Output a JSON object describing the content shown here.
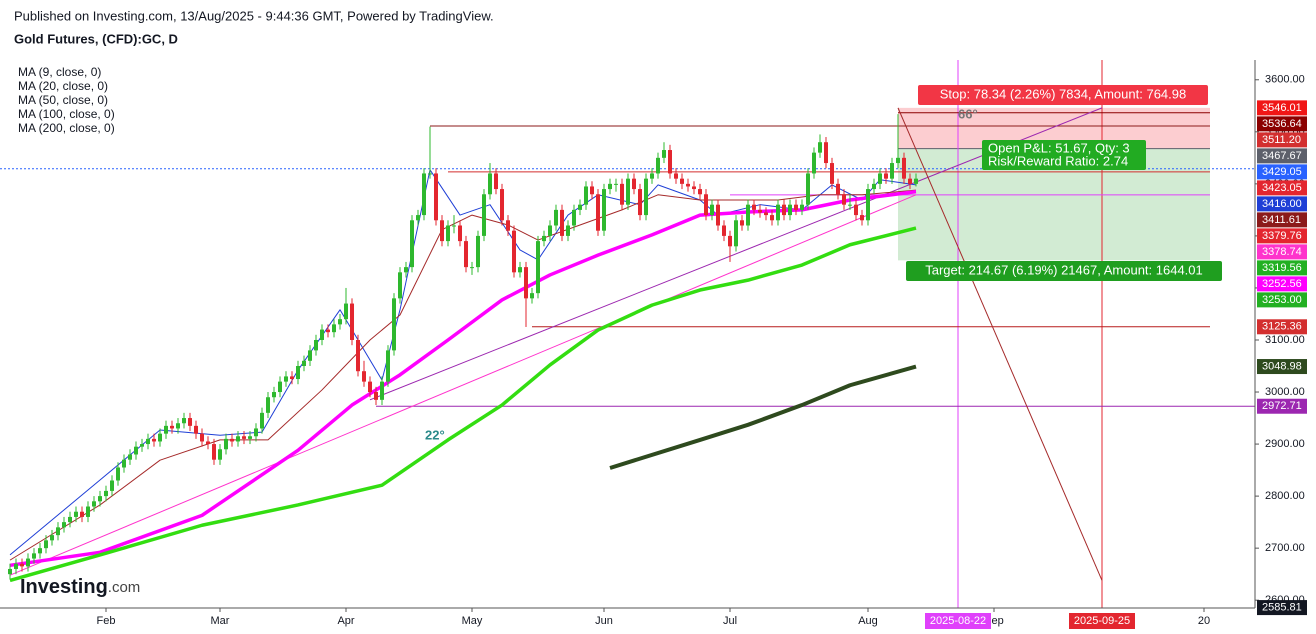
{
  "header": {
    "published": "Published on Investing.com, 13/Aug/2025 - 9:44:36 GMT, Powered by TradingView.",
    "symbol": "Gold Futures, (CFD):GC, D"
  },
  "logo": {
    "brand": "Investing",
    "suffix": ".com"
  },
  "chart_data": {
    "type": "candlestick",
    "xlim": [
      -1.667,
      207.5
    ],
    "ylim": [
      2585,
      3638
    ],
    "up_color": "#2eb82e",
    "down_color": "#e3262f",
    "xticks": [
      {
        "value": 16,
        "label": "Feb"
      },
      {
        "value": 35,
        "label": "Mar"
      },
      {
        "value": 56,
        "label": "Apr"
      },
      {
        "value": 77,
        "label": "May"
      },
      {
        "value": 99,
        "label": "Jun"
      },
      {
        "value": 120,
        "label": "Jul"
      },
      {
        "value": 143,
        "label": "Aug"
      },
      {
        "value": 164,
        "label": "Sep"
      },
      {
        "value": 199,
        "label": "20"
      }
    ],
    "yticks": [
      {
        "value": 2600,
        "label": "2600.00"
      },
      {
        "value": 2700,
        "label": "2700.00"
      },
      {
        "value": 2800,
        "label": "2800.00"
      },
      {
        "value": 2900,
        "label": "2900.00"
      },
      {
        "value": 3000,
        "label": "3000.00"
      },
      {
        "value": 3100,
        "label": "3100.00"
      },
      {
        "value": 3200,
        "label": "3200.00"
      },
      {
        "value": 3300,
        "label": "3300.00"
      },
      {
        "value": 3400,
        "label": "3400.00"
      },
      {
        "value": 3500,
        "label": "3500.00"
      },
      {
        "value": 3600,
        "label": "3600.00"
      }
    ],
    "candles": [
      [
        2650,
        2670,
        2640,
        2660
      ],
      [
        2660,
        2680,
        2650,
        2670
      ],
      [
        2670,
        2680,
        2655,
        2665
      ],
      [
        2665,
        2690,
        2655,
        2680
      ],
      [
        2680,
        2700,
        2670,
        2690
      ],
      [
        2690,
        2710,
        2680,
        2700
      ],
      [
        2700,
        2725,
        2690,
        2715
      ],
      [
        2715,
        2735,
        2705,
        2725
      ],
      [
        2725,
        2750,
        2715,
        2740
      ],
      [
        2740,
        2760,
        2730,
        2750
      ],
      [
        2750,
        2770,
        2740,
        2760
      ],
      [
        2760,
        2780,
        2750,
        2770
      ],
      [
        2770,
        2780,
        2750,
        2760
      ],
      [
        2760,
        2790,
        2750,
        2780
      ],
      [
        2780,
        2800,
        2770,
        2790
      ],
      [
        2790,
        2810,
        2780,
        2800
      ],
      [
        2800,
        2820,
        2790,
        2810
      ],
      [
        2810,
        2840,
        2800,
        2830
      ],
      [
        2830,
        2865,
        2820,
        2855
      ],
      [
        2855,
        2880,
        2845,
        2870
      ],
      [
        2870,
        2890,
        2860,
        2880
      ],
      [
        2880,
        2905,
        2870,
        2895
      ],
      [
        2895,
        2910,
        2885,
        2900
      ],
      [
        2900,
        2920,
        2890,
        2910
      ],
      [
        2910,
        2920,
        2895,
        2905
      ],
      [
        2905,
        2930,
        2895,
        2920
      ],
      [
        2920,
        2945,
        2910,
        2935
      ],
      [
        2935,
        2945,
        2920,
        2930
      ],
      [
        2930,
        2950,
        2920,
        2940
      ],
      [
        2940,
        2960,
        2930,
        2950
      ],
      [
        2950,
        2960,
        2925,
        2935
      ],
      [
        2935,
        2945,
        2910,
        2920
      ],
      [
        2920,
        2930,
        2895,
        2905
      ],
      [
        2905,
        2915,
        2890,
        2900
      ],
      [
        2900,
        2910,
        2860,
        2870
      ],
      [
        2870,
        2900,
        2860,
        2890
      ],
      [
        2890,
        2920,
        2880,
        2910
      ],
      [
        2910,
        2920,
        2895,
        2905
      ],
      [
        2905,
        2925,
        2895,
        2915
      ],
      [
        2915,
        2925,
        2900,
        2910
      ],
      [
        2910,
        2925,
        2900,
        2915
      ],
      [
        2915,
        2940,
        2905,
        2930
      ],
      [
        2930,
        2970,
        2920,
        2960
      ],
      [
        2960,
        3000,
        2950,
        2990
      ],
      [
        2990,
        3010,
        2980,
        3000
      ],
      [
        3000,
        3030,
        2990,
        3020
      ],
      [
        3020,
        3040,
        3010,
        3030
      ],
      [
        3030,
        3040,
        3015,
        3025
      ],
      [
        3025,
        3060,
        3015,
        3050
      ],
      [
        3050,
        3070,
        3040,
        3060
      ],
      [
        3060,
        3090,
        3050,
        3080
      ],
      [
        3080,
        3110,
        3070,
        3100
      ],
      [
        3100,
        3130,
        3090,
        3120
      ],
      [
        3120,
        3130,
        3105,
        3115
      ],
      [
        3115,
        3140,
        3105,
        3130
      ],
      [
        3130,
        3150,
        3120,
        3140
      ],
      [
        3140,
        3200,
        3130,
        3170
      ],
      [
        3170,
        3180,
        3090,
        3100
      ],
      [
        3100,
        3110,
        3030,
        3040
      ],
      [
        3040,
        3060,
        3010,
        3020
      ],
      [
        3020,
        3030,
        2990,
        3000
      ],
      [
        3000,
        3010,
        2975,
        2985
      ],
      [
        2985,
        3030,
        2975,
        3020
      ],
      [
        3020,
        3090,
        3010,
        3080
      ],
      [
        3080,
        3190,
        3070,
        3180
      ],
      [
        3180,
        3240,
        3170,
        3230
      ],
      [
        3230,
        3250,
        3220,
        3240
      ],
      [
        3240,
        3340,
        3230,
        3330
      ],
      [
        3330,
        3350,
        3320,
        3340
      ],
      [
        3340,
        3430,
        3330,
        3420
      ],
      [
        3420,
        3510,
        3410,
        3420
      ],
      [
        3420,
        3430,
        3320,
        3330
      ],
      [
        3330,
        3340,
        3280,
        3290
      ],
      [
        3290,
        3330,
        3280,
        3320
      ],
      [
        3320,
        3340,
        3305,
        3320
      ],
      [
        3320,
        3330,
        3280,
        3290
      ],
      [
        3290,
        3300,
        3230,
        3240
      ],
      [
        3240,
        3250,
        3225,
        3240
      ],
      [
        3240,
        3310,
        3230,
        3300
      ],
      [
        3300,
        3390,
        3290,
        3380
      ],
      [
        3380,
        3440,
        3370,
        3420
      ],
      [
        3420,
        3430,
        3380,
        3390
      ],
      [
        3390,
        3400,
        3320,
        3330
      ],
      [
        3330,
        3340,
        3300,
        3310
      ],
      [
        3310,
        3320,
        3220,
        3230
      ],
      [
        3230,
        3250,
        3220,
        3240
      ],
      [
        3240,
        3250,
        3125,
        3180
      ],
      [
        3180,
        3200,
        3170,
        3190
      ],
      [
        3190,
        3300,
        3180,
        3290
      ],
      [
        3290,
        3310,
        3280,
        3300
      ],
      [
        3300,
        3330,
        3290,
        3320
      ],
      [
        3320,
        3360,
        3310,
        3350
      ],
      [
        3350,
        3360,
        3290,
        3300
      ],
      [
        3300,
        3330,
        3290,
        3320
      ],
      [
        3320,
        3360,
        3310,
        3350
      ],
      [
        3350,
        3370,
        3340,
        3360
      ],
      [
        3360,
        3405,
        3350,
        3395
      ],
      [
        3395,
        3405,
        3370,
        3380
      ],
      [
        3380,
        3390,
        3300,
        3310
      ],
      [
        3310,
        3400,
        3300,
        3390
      ],
      [
        3390,
        3410,
        3380,
        3400
      ],
      [
        3400,
        3410,
        3385,
        3400
      ],
      [
        3400,
        3410,
        3350,
        3360
      ],
      [
        3360,
        3420,
        3350,
        3410
      ],
      [
        3410,
        3420,
        3380,
        3390
      ],
      [
        3390,
        3400,
        3330,
        3340
      ],
      [
        3340,
        3420,
        3330,
        3410
      ],
      [
        3410,
        3430,
        3400,
        3420
      ],
      [
        3420,
        3460,
        3410,
        3450
      ],
      [
        3450,
        3480,
        3440,
        3465
      ],
      [
        3465,
        3475,
        3410,
        3420
      ],
      [
        3420,
        3430,
        3400,
        3410
      ],
      [
        3410,
        3420,
        3390,
        3400
      ],
      [
        3400,
        3410,
        3385,
        3395
      ],
      [
        3395,
        3405,
        3380,
        3390
      ],
      [
        3390,
        3400,
        3370,
        3380
      ],
      [
        3380,
        3390,
        3330,
        3340
      ],
      [
        3340,
        3370,
        3330,
        3360
      ],
      [
        3360,
        3370,
        3310,
        3320
      ],
      [
        3320,
        3330,
        3290,
        3300
      ],
      [
        3300,
        3310,
        3250,
        3280
      ],
      [
        3280,
        3340,
        3270,
        3330
      ],
      [
        3330,
        3340,
        3310,
        3320
      ],
      [
        3320,
        3370,
        3310,
        3360
      ],
      [
        3360,
        3370,
        3340,
        3350
      ],
      [
        3350,
        3360,
        3335,
        3345
      ],
      [
        3345,
        3355,
        3330,
        3340
      ],
      [
        3340,
        3350,
        3320,
        3330
      ],
      [
        3330,
        3370,
        3320,
        3360
      ],
      [
        3360,
        3370,
        3330,
        3340
      ],
      [
        3340,
        3370,
        3330,
        3360
      ],
      [
        3360,
        3370,
        3340,
        3350
      ],
      [
        3350,
        3370,
        3340,
        3360
      ],
      [
        3360,
        3430,
        3350,
        3420
      ],
      [
        3420,
        3470,
        3410,
        3460
      ],
      [
        3460,
        3495,
        3450,
        3480
      ],
      [
        3480,
        3490,
        3430,
        3440
      ],
      [
        3440,
        3450,
        3390,
        3400
      ],
      [
        3400,
        3410,
        3370,
        3380
      ],
      [
        3380,
        3390,
        3350,
        3360
      ],
      [
        3360,
        3380,
        3350,
        3360
      ],
      [
        3360,
        3370,
        3330,
        3340
      ],
      [
        3340,
        3350,
        3320,
        3330
      ],
      [
        3330,
        3400,
        3320,
        3390
      ],
      [
        3390,
        3410,
        3380,
        3400
      ],
      [
        3400,
        3430,
        3390,
        3420
      ],
      [
        3420,
        3430,
        3400,
        3410
      ],
      [
        3410,
        3450,
        3400,
        3440
      ],
      [
        3440,
        3534,
        3430,
        3450
      ],
      [
        3450,
        3460,
        3400,
        3410
      ],
      [
        3410,
        3420,
        3390,
        3400
      ],
      [
        3400,
        3420,
        3395,
        3410
      ]
    ],
    "series": [
      {
        "name": "MA (9, close, 0)",
        "color": "#1f3fd6",
        "x": [
          0,
          15,
          25,
          35,
          42,
          48,
          55,
          62,
          65,
          70,
          75,
          80,
          85,
          88,
          93,
          98,
          105,
          108,
          115,
          118,
          125,
          132,
          137,
          142,
          145,
          151
        ],
        "values": [
          2687,
          2831,
          2927,
          2917,
          2923,
          3042,
          3158,
          3023,
          3158,
          3427,
          3340,
          3360,
          3273,
          3254,
          3340,
          3379,
          3360,
          3398,
          3369,
          3340,
          3360,
          3350,
          3398,
          3369,
          3408,
          3398
        ]
      },
      {
        "name": "MA (20, close, 0)",
        "color": "#a52a2a",
        "x": [
          0,
          15,
          25,
          35,
          43,
          52,
          60,
          65,
          72,
          77,
          83,
          88,
          95,
          102,
          108,
          115,
          122,
          128,
          135,
          142,
          151
        ],
        "values": [
          2677,
          2783,
          2869,
          2908,
          2908,
          3004,
          3100,
          3148,
          3312,
          3340,
          3321,
          3292,
          3321,
          3350,
          3379,
          3369,
          3369,
          3369,
          3379,
          3379,
          3388
        ]
      },
      {
        "name": "MA (50, close, 0)",
        "color": "#ff00ff",
        "x": [
          0,
          15,
          32,
          48,
          57,
          65,
          73,
          82,
          90,
          98,
          107,
          115,
          123,
          132,
          140,
          151
        ],
        "values": [
          2667,
          2692,
          2763,
          2888,
          2975,
          3033,
          3100,
          3177,
          3225,
          3263,
          3302,
          3340,
          3346,
          3350,
          3369,
          3385
        ]
      },
      {
        "name": "MA (100, close, 0)",
        "color": "#33dd11",
        "x": [
          0,
          15,
          32,
          48,
          62,
          73,
          82,
          90,
          98,
          107,
          115,
          123,
          132,
          140,
          151
        ],
        "values": [
          2638,
          2687,
          2744,
          2783,
          2821,
          2908,
          2975,
          3052,
          3119,
          3167,
          3196,
          3215,
          3244,
          3283,
          3315
        ]
      },
      {
        "name": "MA (200, close, 0)",
        "color": "#2e4a1e",
        "x": [
          100,
          115,
          123,
          132,
          140,
          151
        ],
        "values": [
          2854,
          2908,
          2937,
          2975,
          3013,
          3048.98
        ]
      }
    ],
    "trendlines": [
      {
        "color": "#ff33cc",
        "x": [
          0,
          151
        ],
        "values": [
          2648,
          3379
        ]
      },
      {
        "color": "#9c27b0",
        "x": [
          60,
          182
        ],
        "values": [
          2985,
          3546.01
        ]
      },
      {
        "color": "#a52a2a",
        "x": [
          148,
          182
        ],
        "values": [
          3546.01,
          2638
        ]
      }
    ],
    "hlines": [
      {
        "value": 3536.64,
        "color": "#8b0000",
        "x": [
          148,
          200
        ]
      },
      {
        "value": 3511.2,
        "color": "#8b1a1a",
        "x": [
          70,
          200
        ]
      },
      {
        "value": 3429.05,
        "color": "#2962ff",
        "x": [
          -1.667,
          207.5
        ]
      },
      {
        "value": 3423.05,
        "color": "#d32f2f",
        "x": [
          73,
          200
        ]
      },
      {
        "value": 3378.74,
        "color": "#e040fb",
        "x": [
          120,
          200
        ]
      },
      {
        "value": 3125.36,
        "color": "#b71c1c",
        "x": [
          87,
          200
        ]
      },
      {
        "value": 2972.71,
        "color": "#9c27b0",
        "x": [
          61,
          207.5
        ]
      }
    ],
    "price_tags": [
      {
        "value": 3546.01,
        "label": "3546.01",
        "color": "#f01616"
      },
      {
        "value": 3536.64,
        "label": "3536.64",
        "color": "#8b0000"
      },
      {
        "value": 3511.2,
        "label": "3511.20",
        "color": "#d32f2f"
      },
      {
        "value": 3467.67,
        "label": "3467.67",
        "color": "#5d606b"
      },
      {
        "value": 3429.05,
        "label": "3429.05",
        "color": "#2962ff"
      },
      {
        "value": 3423.05,
        "label": "3423.05",
        "color": "#e3262f"
      },
      {
        "value": 3416.0,
        "label": "3416.00",
        "color": "#1f3fd6"
      },
      {
        "value": 3411.61,
        "label": "3411.61",
        "color": "#8b1a1a"
      },
      {
        "value": 3379.76,
        "label": "3379.76",
        "color": "#e3262f"
      },
      {
        "value": 3378.74,
        "label": "3378.74",
        "color": "#ff33cc"
      },
      {
        "value": 3319.56,
        "label": "3319.56",
        "color": "#22b022"
      },
      {
        "value": 3252.56,
        "label": "3252.56",
        "color": "#ff00ff"
      },
      {
        "value": 3253.0,
        "label": "3253.00",
        "color": "#22b022"
      },
      {
        "value": 3125.36,
        "label": "3125.36",
        "color": "#d32f2f"
      },
      {
        "value": 3048.98,
        "label": "3048.98",
        "color": "#2e4a1e"
      },
      {
        "value": 2972.71,
        "label": "2972.71",
        "color": "#9c27b0"
      },
      {
        "value": 2585.81,
        "label": "2585.81",
        "color": "#131722"
      }
    ],
    "position": {
      "entry": 3467.67,
      "stop": 3546.01,
      "target": 3253.0,
      "x": [
        148,
        200
      ],
      "stop_label": "Stop: 78.34 (2.26%) 7834, Amount: 764.98",
      "pl_label": "Open P&L: 51.67, Qty: 3",
      "rr_label": "Risk/Reward Ratio: 2.74",
      "target_label": "Target: 214.67 (6.19%) 21467, Amount: 1644.01"
    },
    "time_markers": [
      {
        "value": 158,
        "label": "2025-08-22",
        "color": "#e040fb"
      },
      {
        "value": 182,
        "label": "2025-09-25",
        "color": "#e3262f"
      }
    ],
    "angle_labels": [
      "22°",
      "66°"
    ]
  }
}
